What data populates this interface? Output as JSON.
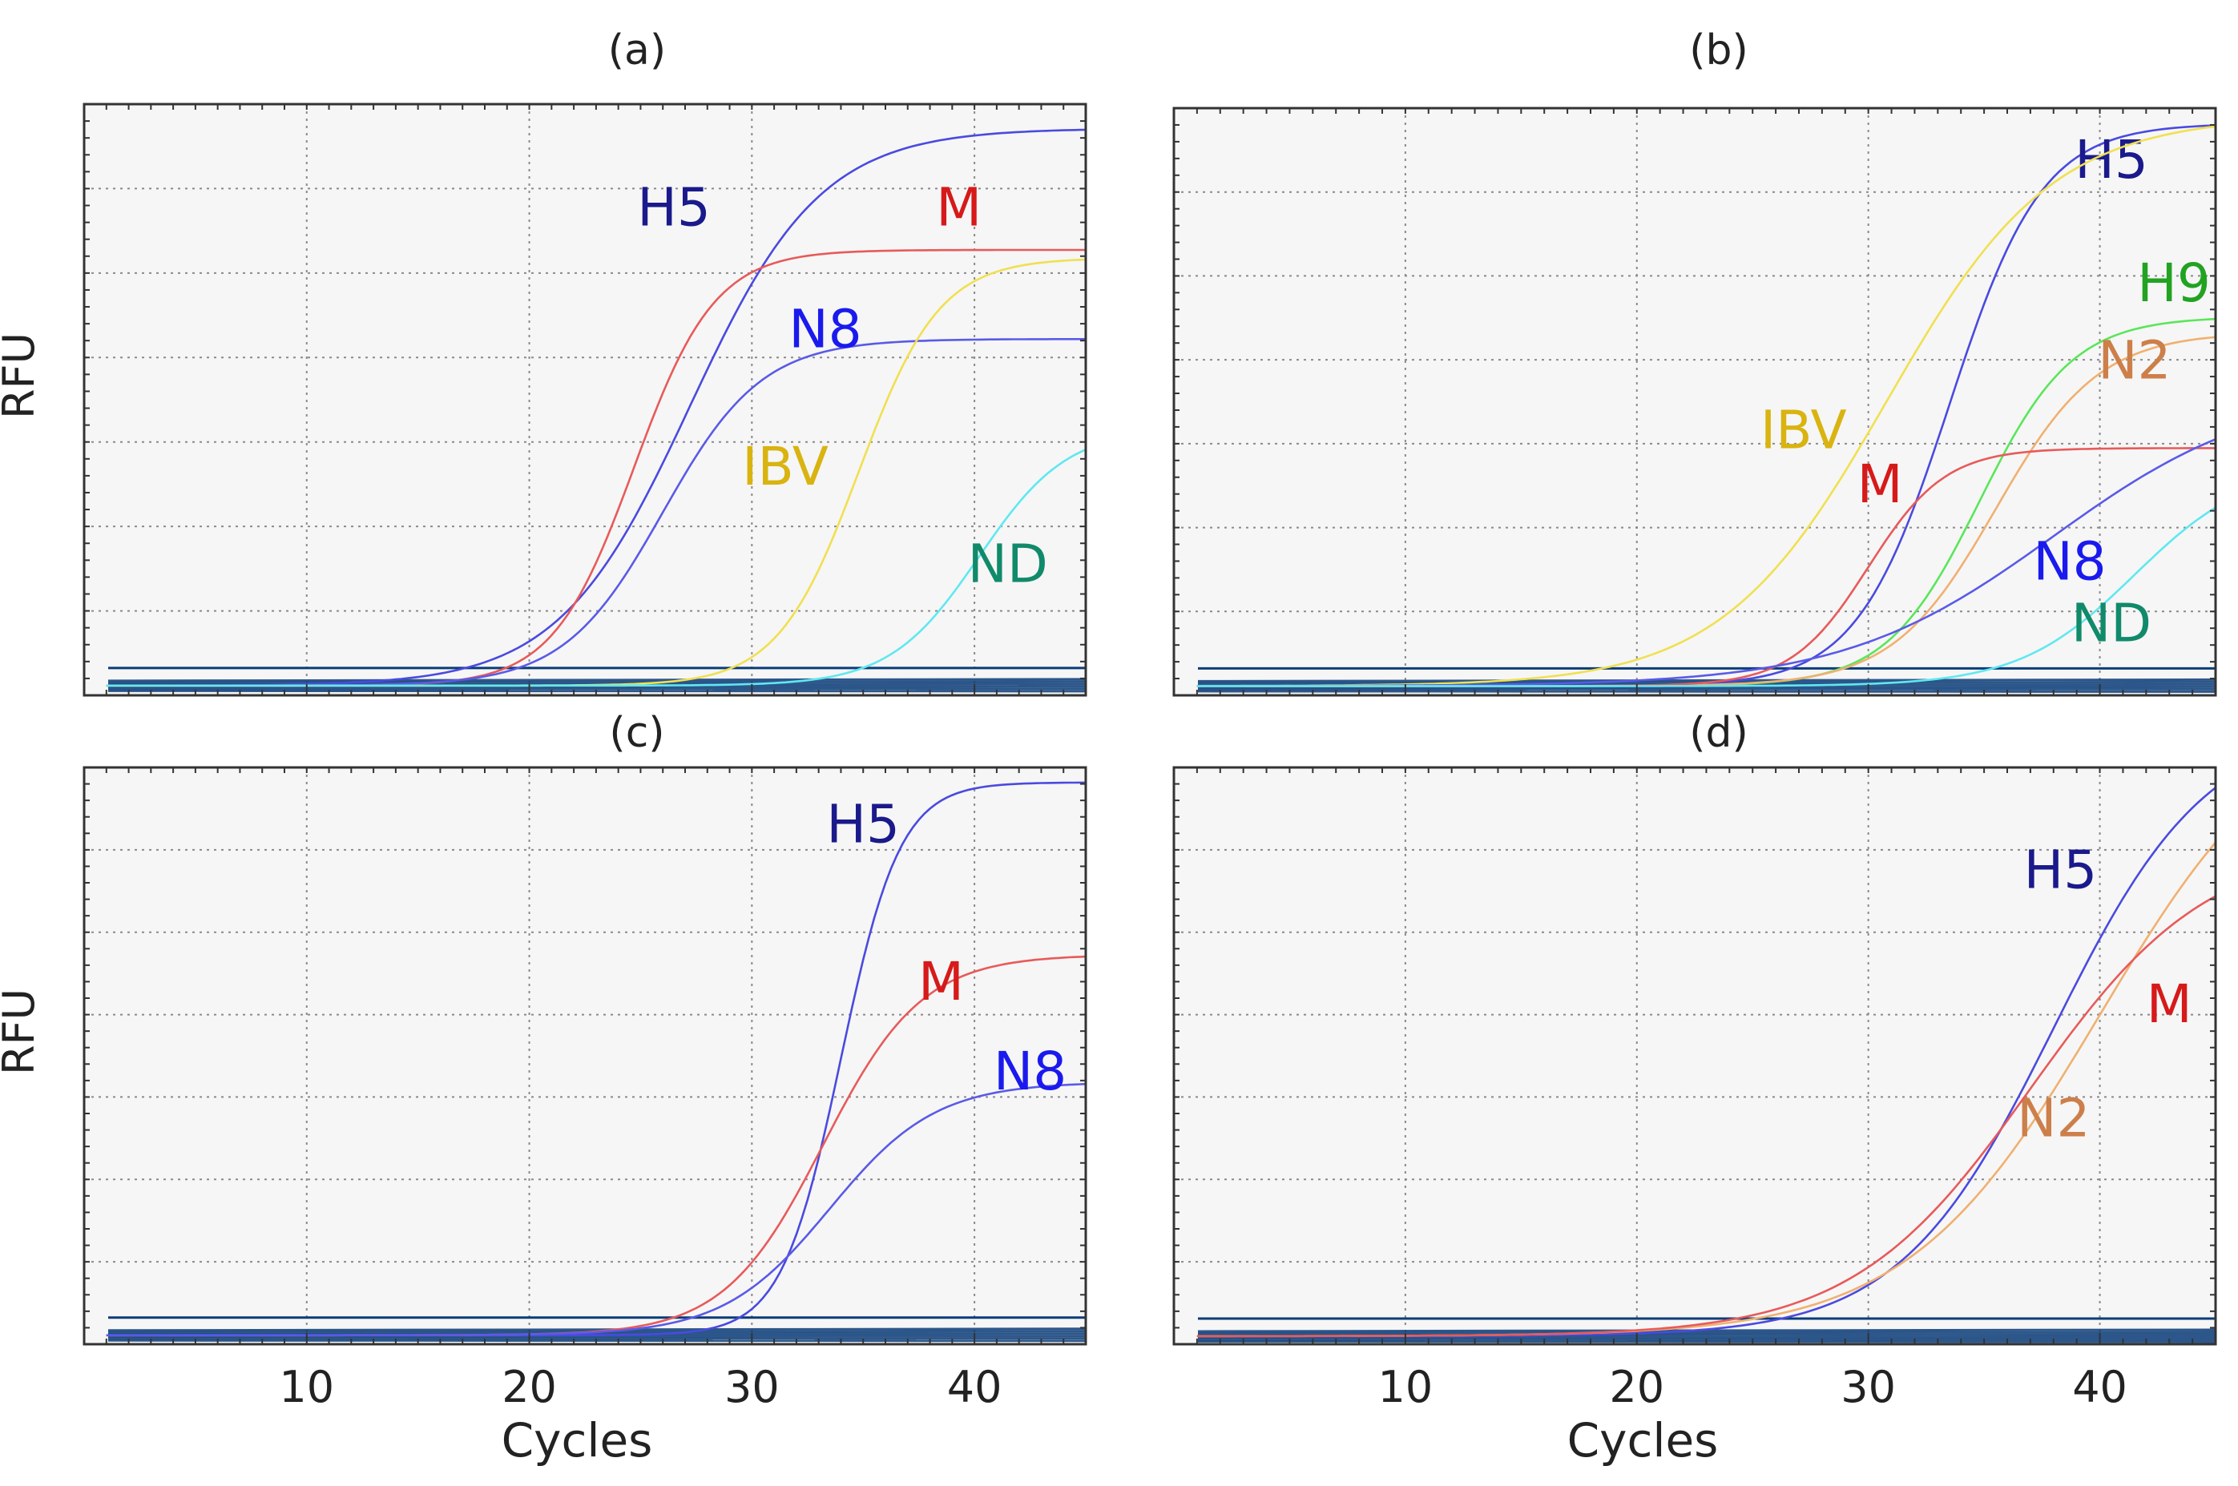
{
  "figure": {
    "shared_xlabel": "Cycles",
    "shared_ylabel": "RFU",
    "colors": {
      "H5": "#1a1a8c",
      "M": "#d61a1a",
      "N8": "#1a1aee",
      "IBV": "#d9b310",
      "ND": "#108a6a",
      "H9": "#21a321",
      "N2": "#cd7f4a",
      "background": "#f6f6f6",
      "grid": "#8a8a8a",
      "baseline": "#0b3c78"
    }
  },
  "chart_data": [
    {
      "panel": "a",
      "type": "line",
      "title": "(a)",
      "xlabel": "",
      "ylabel": "RFU",
      "xlim": [
        0,
        45
      ],
      "ylim": [
        0,
        7.3
      ],
      "xticks": [
        10,
        20,
        30,
        40
      ],
      "show_xtick_labels": false,
      "grid": true,
      "series": [
        {
          "name": "H5",
          "label": "H5",
          "baseline": 0.12,
          "plateau": 7.0,
          "midpoint": 27.2,
          "slope": 0.34,
          "color": "#4a4ae0",
          "label_color": "#1a1a8c",
          "label_at": [
            26.5,
            5.8
          ]
        },
        {
          "name": "M",
          "label": "M",
          "baseline": 0.12,
          "plateau": 5.5,
          "midpoint": 24.7,
          "slope": 0.55,
          "color": "#e85a5a",
          "label_color": "#d61a1a",
          "label_at": [
            39.3,
            5.8
          ]
        },
        {
          "name": "N8",
          "label": "N8",
          "baseline": 0.12,
          "plateau": 4.4,
          "midpoint": 26.0,
          "slope": 0.45,
          "color": "#5a5ae8",
          "label_color": "#1a1aee",
          "label_at": [
            33.3,
            4.3
          ]
        },
        {
          "name": "IBV",
          "label": "IBV",
          "baseline": 0.12,
          "plateau": 5.4,
          "midpoint": 34.8,
          "slope": 0.55,
          "color": "#f0e050",
          "label_color": "#d9b310",
          "label_at": [
            31.5,
            2.6
          ]
        },
        {
          "name": "ND",
          "label": "ND",
          "baseline": 0.12,
          "plateau": 3.3,
          "midpoint": 40.2,
          "slope": 0.5,
          "color": "#60e8f0",
          "label_color": "#108a6a",
          "label_at": [
            41.5,
            1.4
          ]
        }
      ]
    },
    {
      "panel": "b",
      "type": "line",
      "title": "(b)",
      "xlabel": "",
      "ylabel": "",
      "xlim": [
        0,
        45
      ],
      "ylim": [
        0,
        7.6
      ],
      "xticks": [
        10,
        20,
        30,
        40
      ],
      "show_xtick_labels": false,
      "grid": true,
      "series": [
        {
          "name": "H5",
          "label": "H5",
          "baseline": 0.12,
          "plateau": 7.4,
          "midpoint": 33.5,
          "slope": 0.5,
          "color": "#4a4ae0",
          "label_color": "#1a1a8c",
          "label_at": [
            40.5,
            6.7
          ]
        },
        {
          "name": "IBV",
          "label": "IBV",
          "baseline": 0.12,
          "plateau": 7.5,
          "midpoint": 30.8,
          "slope": 0.28,
          "color": "#f0e050",
          "label_color": "#d9b310",
          "label_at": [
            27.2,
            3.2
          ]
        },
        {
          "name": "H9",
          "label": "H9",
          "baseline": 0.12,
          "plateau": 4.9,
          "midpoint": 34.8,
          "slope": 0.5,
          "color": "#5ae65a",
          "label_color": "#21a321",
          "label_at": [
            43.2,
            5.1
          ]
        },
        {
          "name": "N2",
          "label": "N2",
          "baseline": 0.12,
          "plateau": 4.7,
          "midpoint": 35.5,
          "slope": 0.45,
          "color": "#f0b070",
          "label_color": "#cd7f4a",
          "label_at": [
            41.5,
            4.1
          ]
        },
        {
          "name": "M",
          "label": "M",
          "baseline": 0.12,
          "plateau": 3.2,
          "midpoint": 30.0,
          "slope": 0.6,
          "color": "#e85a5a",
          "label_color": "#d61a1a",
          "label_at": [
            30.5,
            2.5
          ]
        },
        {
          "name": "N8",
          "label": "N8",
          "baseline": 0.12,
          "plateau": 4.0,
          "midpoint": 38.0,
          "slope": 0.22,
          "color": "#5a5ae8",
          "label_color": "#1a1aee",
          "label_at": [
            38.7,
            1.5
          ]
        },
        {
          "name": "ND",
          "label": "ND",
          "baseline": 0.12,
          "plateau": 3.0,
          "midpoint": 41.5,
          "slope": 0.4,
          "color": "#60e8f0",
          "label_color": "#108a6a",
          "label_at": [
            40.5,
            0.7
          ]
        }
      ]
    },
    {
      "panel": "c",
      "type": "line",
      "title": "(c)",
      "xlabel": "Cycles",
      "ylabel": "RFU",
      "xlim": [
        0,
        45
      ],
      "ylim": [
        0,
        7.7
      ],
      "xticks": [
        10,
        20,
        30,
        40
      ],
      "show_xtick_labels": true,
      "grid": true,
      "series": [
        {
          "name": "H5",
          "label": "H5",
          "baseline": 0.12,
          "plateau": 7.5,
          "midpoint": 34.0,
          "slope": 0.75,
          "color": "#4a4ae0",
          "label_color": "#1a1a8c",
          "label_at": [
            35.0,
            6.7
          ]
        },
        {
          "name": "M",
          "label": "M",
          "baseline": 0.12,
          "plateau": 5.2,
          "midpoint": 33.2,
          "slope": 0.45,
          "color": "#e85a5a",
          "label_color": "#d61a1a",
          "label_at": [
            38.5,
            4.6
          ]
        },
        {
          "name": "N8",
          "label": "N8",
          "baseline": 0.12,
          "plateau": 3.5,
          "midpoint": 33.5,
          "slope": 0.42,
          "color": "#5a5ae8",
          "label_color": "#1a1aee",
          "label_at": [
            42.5,
            3.4
          ]
        }
      ]
    },
    {
      "panel": "d",
      "type": "line",
      "title": "(d)",
      "xlabel": "Cycles",
      "ylabel": "",
      "xlim": [
        0,
        45
      ],
      "ylim": [
        0,
        8.6
      ],
      "xticks": [
        10,
        20,
        30,
        40
      ],
      "show_xtick_labels": true,
      "grid": true,
      "series": [
        {
          "name": "H5",
          "label": "H5",
          "baseline": 0.12,
          "plateau": 9.3,
          "midpoint": 38.0,
          "slope": 0.3,
          "color": "#4a4ae0",
          "label_color": "#1a1a8c",
          "label_at": [
            38.3,
            6.8
          ]
        },
        {
          "name": "N2",
          "label": "N2",
          "baseline": 0.12,
          "plateau": 9.7,
          "midpoint": 40.0,
          "slope": 0.24,
          "color": "#f0b070",
          "label_color": "#cd7f4a",
          "label_at": [
            38.0,
            3.1
          ]
        },
        {
          "name": "M",
          "label": "M",
          "baseline": 0.12,
          "plateau": 7.5,
          "midpoint": 37.0,
          "slope": 0.26,
          "color": "#e85a5a",
          "label_color": "#d61a1a",
          "label_at": [
            43.0,
            4.8
          ]
        }
      ]
    }
  ]
}
